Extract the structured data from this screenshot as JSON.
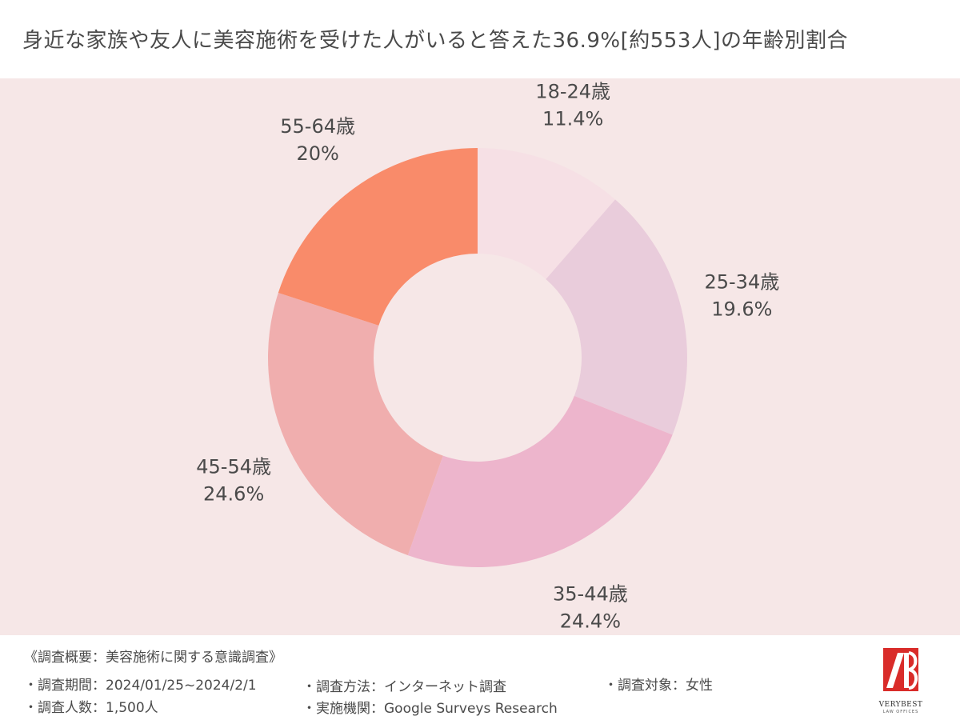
{
  "title": "身近な家族や友人に美容施術を受けた人がいると答えた36.9%[約553人]の年齢別割合",
  "chart_data": {
    "type": "pie",
    "donut": true,
    "legend": "none",
    "slices": [
      {
        "label": "18-24歳",
        "value": 11.4,
        "value_label": "11.4%",
        "color": "#f6e0e5"
      },
      {
        "label": "25-34歳",
        "value": 19.6,
        "value_label": "19.6%",
        "color": "#e9ccdb"
      },
      {
        "label": "35-44歳",
        "value": 24.4,
        "value_label": "24.4%",
        "color": "#edb5cc"
      },
      {
        "label": "45-54歳",
        "value": 24.6,
        "value_label": "24.6%",
        "color": "#f0aeae"
      },
      {
        "label": "55-64歳",
        "value": 20,
        "value_label": "20%",
        "color": "#f98b6a"
      }
    ]
  },
  "colors": {
    "chart_background": "#f6e7e7",
    "text": "#4a4a4a",
    "logo_red": "#d92c2a"
  },
  "footer": {
    "heading": "《調査概要：美容施術に関する意識調査》",
    "period": "・調査期間：2024/01/25~2024/2/1",
    "respondents": "・調査人数：1,500人",
    "method": "・調査方法：インターネット調査",
    "organization": "・実施機関：Google Surveys  Research",
    "target": "・調査対象：女性"
  },
  "logo": {
    "name": "VERYBEST",
    "sub": "LAW OFFICES"
  }
}
